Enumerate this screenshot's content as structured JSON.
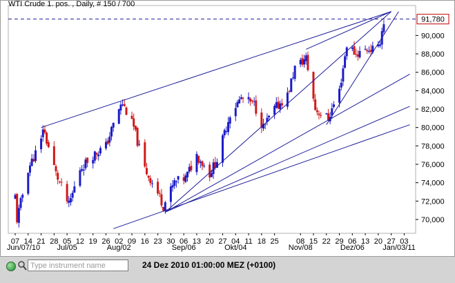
{
  "header": {
    "title": "WTI Crude 1. pos. , Daily, # 150 / 700"
  },
  "price_tag": "91,780",
  "footer": {
    "search_placeholder": "Type instrument name",
    "timestamp": "24 Dez 2010 01:00:00  MEZ (+0100)"
  },
  "colors": {
    "up": "#1c1cc8",
    "down": "#d01818",
    "trendline": "#1c1c9a",
    "price_tag_border": "#c00000"
  },
  "icons": {
    "status": "green-status-dot-icon",
    "search": "magnifier-icon"
  },
  "chart_data": {
    "type": "candlestick",
    "title": "WTI Crude 1. pos. , Daily, # 150 / 700",
    "y_axis": {
      "range": [
        69,
        92
      ],
      "ticks": [
        70000,
        72000,
        74000,
        76000,
        78000,
        80000,
        82000,
        84000,
        86000,
        88000,
        90000
      ],
      "tick_labels": [
        "70,000",
        "72,000",
        "74,000",
        "76,000",
        "78,000",
        "80,000",
        "82,000",
        "84,000",
        "86,000",
        "88,000",
        "90,000"
      ]
    },
    "x_axis": {
      "day_labels": [
        "07",
        "14",
        "21",
        "28",
        "05",
        "12",
        "19",
        "26",
        "02",
        "09",
        "16",
        "23",
        "30",
        "06",
        "13",
        "20",
        "27",
        "04",
        "11",
        "18",
        "25",
        "08",
        "15",
        "22",
        "29",
        "06",
        "13",
        "20",
        "27",
        "03"
      ],
      "month_labels": [
        "Jun/07/10",
        "Jul/05",
        "Aug/02",
        "Sep/06",
        "Okt/04",
        "Nov/08",
        "Dez/06",
        "Jan/03/11"
      ]
    },
    "last_price": 91.78,
    "grid": false,
    "anchors": [
      {
        "date": "2010-06-07",
        "price": 72.5
      },
      {
        "date": "2010-06-08",
        "price": 70.0
      },
      {
        "date": "2010-06-14",
        "price": 75.5
      },
      {
        "date": "2010-06-21",
        "price": 78.5
      },
      {
        "date": "2010-06-22",
        "price": 80.0
      },
      {
        "date": "2010-06-29",
        "price": 75.0
      },
      {
        "date": "2010-07-06",
        "price": 71.5
      },
      {
        "date": "2010-07-12",
        "price": 75.5
      },
      {
        "date": "2010-07-19",
        "price": 77.0
      },
      {
        "date": "2010-07-26",
        "price": 78.0
      },
      {
        "date": "2010-08-02",
        "price": 82.0
      },
      {
        "date": "2010-08-04",
        "price": 82.6
      },
      {
        "date": "2010-08-10",
        "price": 80.0
      },
      {
        "date": "2010-08-16",
        "price": 75.5
      },
      {
        "date": "2010-08-24",
        "price": 72.5
      },
      {
        "date": "2010-08-26",
        "price": 71.5
      },
      {
        "date": "2010-09-01",
        "price": 74.0
      },
      {
        "date": "2010-09-07",
        "price": 74.5
      },
      {
        "date": "2010-09-13",
        "price": 77.0
      },
      {
        "date": "2010-09-20",
        "price": 75.0
      },
      {
        "date": "2010-09-24",
        "price": 76.5
      },
      {
        "date": "2010-10-01",
        "price": 81.5
      },
      {
        "date": "2010-10-07",
        "price": 83.2
      },
      {
        "date": "2010-10-14",
        "price": 82.5
      },
      {
        "date": "2010-10-19",
        "price": 80.0
      },
      {
        "date": "2010-10-25",
        "price": 82.0
      },
      {
        "date": "2010-11-01",
        "price": 83.5
      },
      {
        "date": "2010-11-05",
        "price": 86.5
      },
      {
        "date": "2010-11-11",
        "price": 87.5
      },
      {
        "date": "2010-11-16",
        "price": 82.0
      },
      {
        "date": "2010-11-19",
        "price": 81.5
      },
      {
        "date": "2010-11-23",
        "price": 81.0
      },
      {
        "date": "2010-11-29",
        "price": 84.0
      },
      {
        "date": "2010-12-03",
        "price": 89.0
      },
      {
        "date": "2010-12-08",
        "price": 88.0
      },
      {
        "date": "2010-12-14",
        "price": 88.5
      },
      {
        "date": "2010-12-20",
        "price": 88.5
      },
      {
        "date": "2010-12-23",
        "price": 91.5
      }
    ],
    "trendlines": [
      {
        "from": {
          "date": "2010-06-21",
          "price": 80.0
        },
        "to": {
          "date": "2010-12-27",
          "price": 92.6
        }
      },
      {
        "from": {
          "date": "2010-11-11",
          "price": 88.5
        },
        "to": {
          "date": "2010-12-27",
          "price": 92.6
        }
      },
      {
        "from": {
          "date": "2010-11-22",
          "price": 80.3
        },
        "to": {
          "date": "2010-12-31",
          "price": 92.6
        }
      },
      {
        "from": {
          "date": "2010-08-27",
          "price": 70.8
        },
        "to": {
          "date": "2010-12-27",
          "price": 92.6
        }
      },
      {
        "from": {
          "date": "2010-08-27",
          "price": 70.8
        },
        "to": {
          "date": "2011-01-06",
          "price": 85.8
        }
      },
      {
        "from": {
          "date": "2010-08-27",
          "price": 70.8
        },
        "to": {
          "date": "2011-01-06",
          "price": 82.3
        }
      },
      {
        "from": {
          "date": "2010-07-30",
          "price": 69.0
        },
        "to": {
          "date": "2011-01-06",
          "price": 80.3
        }
      }
    ]
  }
}
